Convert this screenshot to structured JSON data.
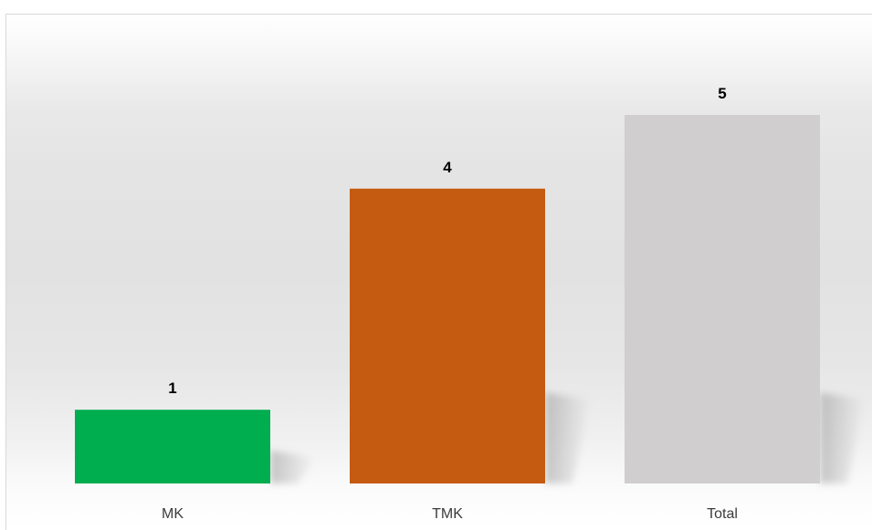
{
  "chart_data": {
    "type": "bar",
    "categories": [
      "MK",
      "TMK",
      "Total"
    ],
    "values": [
      1,
      4,
      5
    ],
    "colors": [
      "#00ad4f",
      "#c55a11",
      "#d0cece"
    ],
    "data_labels": [
      "1",
      "4",
      "5"
    ],
    "title": "",
    "xlabel": "",
    "ylabel": "",
    "ylim": [
      0,
      5
    ],
    "grid": false,
    "legend": "none"
  }
}
